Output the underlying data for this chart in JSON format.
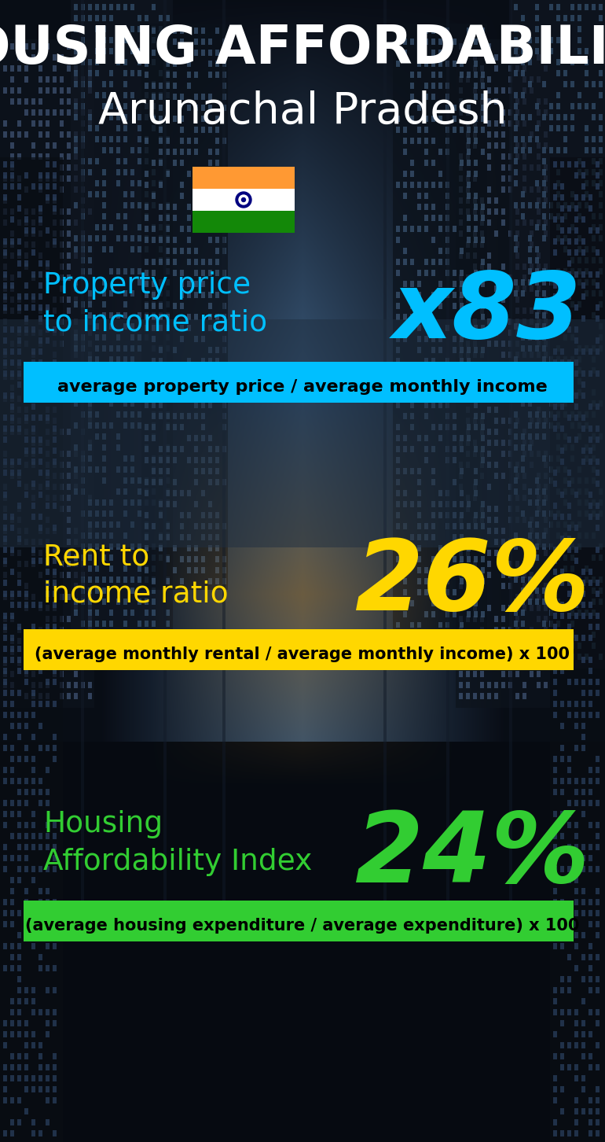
{
  "title_line1": "HOUSING AFFORDABILITY",
  "title_line2": "Arunachal Pradesh",
  "section1_label": "Property price\nto income ratio",
  "section1_value": "x83",
  "section1_label_color": "#00bfff",
  "section1_value_color": "#00bfff",
  "section1_formula": "average property price / average monthly income",
  "section1_formula_bg": "#00bfff",
  "section1_formula_color": "#000000",
  "section2_label": "Rent to\nincome ratio",
  "section2_value": "26%",
  "section2_label_color": "#FFD700",
  "section2_value_color": "#FFD700",
  "section2_formula": "(average monthly rental / average monthly income) x 100",
  "section2_formula_bg": "#FFD700",
  "section2_formula_color": "#000000",
  "section3_label": "Housing\nAffordability Index",
  "section3_value": "24%",
  "section3_label_color": "#32CD32",
  "section3_value_color": "#32CD32",
  "section3_formula": "(average housing expenditure / average expenditure) x 100",
  "section3_formula_bg": "#32CD32",
  "section3_formula_color": "#000000",
  "title_color": "#ffffff",
  "subtitle_color": "#ffffff",
  "flag_saffron": "#FF9933",
  "flag_white": "#FFFFFF",
  "flag_green": "#138808",
  "flag_chakra": "#000080"
}
